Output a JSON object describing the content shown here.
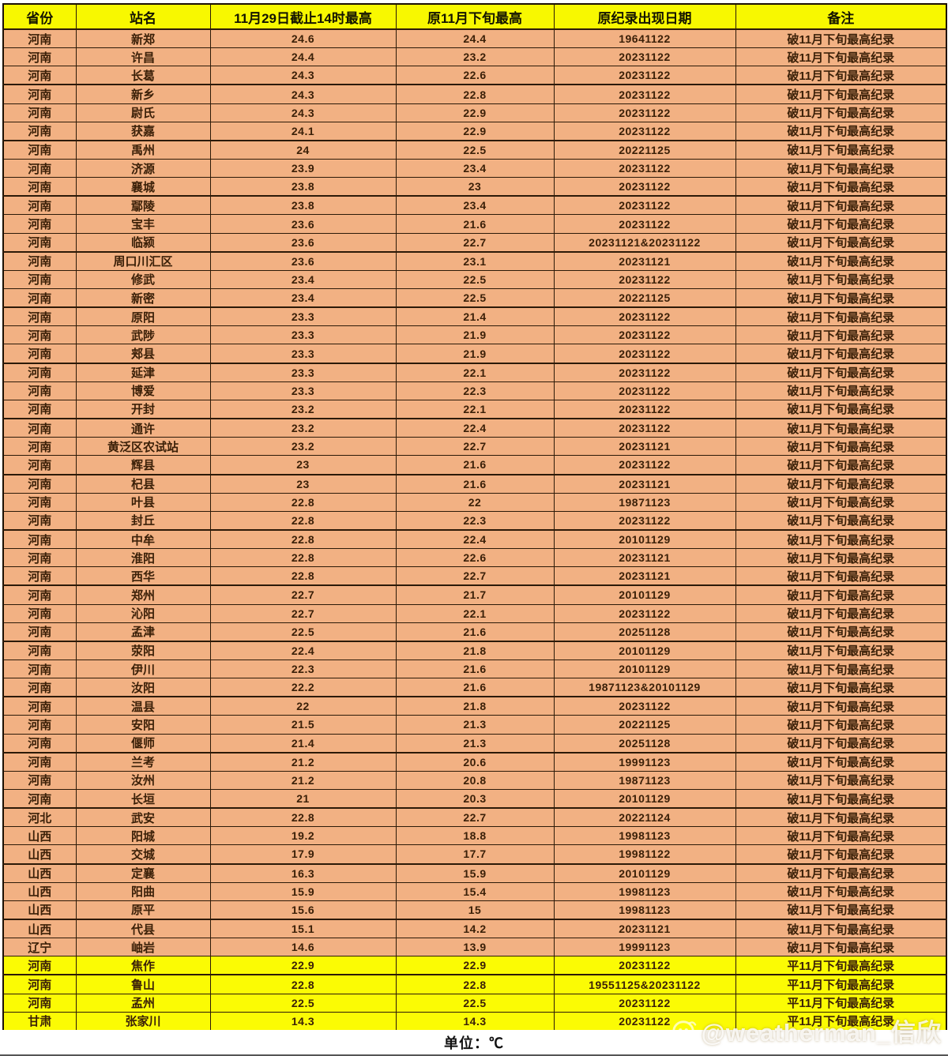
{
  "table": {
    "columns": [
      "省份",
      "站名",
      "11月29日截止14时最高",
      "原11月下旬最高",
      "原纪录出现日期",
      "备注"
    ],
    "rows": [
      {
        "province": "河南",
        "station": "新郑",
        "temp_today": "24.6",
        "temp_prev": "24.4",
        "record_date": "19641122",
        "remark": "破11月下旬最高纪录",
        "highlight": false
      },
      {
        "province": "河南",
        "station": "许昌",
        "temp_today": "24.4",
        "temp_prev": "23.2",
        "record_date": "20231122",
        "remark": "破11月下旬最高纪录",
        "highlight": false
      },
      {
        "province": "河南",
        "station": "长葛",
        "temp_today": "24.3",
        "temp_prev": "22.6",
        "record_date": "20231122",
        "remark": "破11月下旬最高纪录",
        "highlight": false
      },
      {
        "province": "河南",
        "station": "新乡",
        "temp_today": "24.3",
        "temp_prev": "22.8",
        "record_date": "20231122",
        "remark": "破11月下旬最高纪录",
        "highlight": false
      },
      {
        "province": "河南",
        "station": "尉氏",
        "temp_today": "24.3",
        "temp_prev": "22.9",
        "record_date": "20231122",
        "remark": "破11月下旬最高纪录",
        "highlight": false
      },
      {
        "province": "河南",
        "station": "获嘉",
        "temp_today": "24.1",
        "temp_prev": "22.9",
        "record_date": "20231122",
        "remark": "破11月下旬最高纪录",
        "highlight": false
      },
      {
        "province": "河南",
        "station": "禹州",
        "temp_today": "24",
        "temp_prev": "22.5",
        "record_date": "20221125",
        "remark": "破11月下旬最高纪录",
        "highlight": false
      },
      {
        "province": "河南",
        "station": "济源",
        "temp_today": "23.9",
        "temp_prev": "23.4",
        "record_date": "20231122",
        "remark": "破11月下旬最高纪录",
        "highlight": false
      },
      {
        "province": "河南",
        "station": "襄城",
        "temp_today": "23.8",
        "temp_prev": "23",
        "record_date": "20231122",
        "remark": "破11月下旬最高纪录",
        "highlight": false
      },
      {
        "province": "河南",
        "station": "鄢陵",
        "temp_today": "23.8",
        "temp_prev": "23.4",
        "record_date": "20231122",
        "remark": "破11月下旬最高纪录",
        "highlight": false
      },
      {
        "province": "河南",
        "station": "宝丰",
        "temp_today": "23.6",
        "temp_prev": "21.6",
        "record_date": "20231122",
        "remark": "破11月下旬最高纪录",
        "highlight": false
      },
      {
        "province": "河南",
        "station": "临颍",
        "temp_today": "23.6",
        "temp_prev": "22.7",
        "record_date": "20231121&20231122",
        "remark": "破11月下旬最高纪录",
        "highlight": false
      },
      {
        "province": "河南",
        "station": "周口川汇区",
        "temp_today": "23.6",
        "temp_prev": "23.1",
        "record_date": "20231121",
        "remark": "破11月下旬最高纪录",
        "highlight": false
      },
      {
        "province": "河南",
        "station": "修武",
        "temp_today": "23.4",
        "temp_prev": "22.5",
        "record_date": "20231122",
        "remark": "破11月下旬最高纪录",
        "highlight": false
      },
      {
        "province": "河南",
        "station": "新密",
        "temp_today": "23.4",
        "temp_prev": "22.5",
        "record_date": "20221125",
        "remark": "破11月下旬最高纪录",
        "highlight": false
      },
      {
        "province": "河南",
        "station": "原阳",
        "temp_today": "23.3",
        "temp_prev": "21.4",
        "record_date": "20231122",
        "remark": "破11月下旬最高纪录",
        "highlight": false
      },
      {
        "province": "河南",
        "station": "武陟",
        "temp_today": "23.3",
        "temp_prev": "21.9",
        "record_date": "20231122",
        "remark": "破11月下旬最高纪录",
        "highlight": false
      },
      {
        "province": "河南",
        "station": "郏县",
        "temp_today": "23.3",
        "temp_prev": "21.9",
        "record_date": "20231122",
        "remark": "破11月下旬最高纪录",
        "highlight": false
      },
      {
        "province": "河南",
        "station": "延津",
        "temp_today": "23.3",
        "temp_prev": "22.1",
        "record_date": "20231122",
        "remark": "破11月下旬最高纪录",
        "highlight": false
      },
      {
        "province": "河南",
        "station": "博爱",
        "temp_today": "23.3",
        "temp_prev": "22.3",
        "record_date": "20231122",
        "remark": "破11月下旬最高纪录",
        "highlight": false
      },
      {
        "province": "河南",
        "station": "开封",
        "temp_today": "23.2",
        "temp_prev": "22.1",
        "record_date": "20231122",
        "remark": "破11月下旬最高纪录",
        "highlight": false
      },
      {
        "province": "河南",
        "station": "通许",
        "temp_today": "23.2",
        "temp_prev": "22.4",
        "record_date": "20231122",
        "remark": "破11月下旬最高纪录",
        "highlight": false
      },
      {
        "province": "河南",
        "station": "黄泛区农试站",
        "temp_today": "23.2",
        "temp_prev": "22.7",
        "record_date": "20231121",
        "remark": "破11月下旬最高纪录",
        "highlight": false
      },
      {
        "province": "河南",
        "station": "辉县",
        "temp_today": "23",
        "temp_prev": "21.6",
        "record_date": "20231122",
        "remark": "破11月下旬最高纪录",
        "highlight": false
      },
      {
        "province": "河南",
        "station": "杞县",
        "temp_today": "23",
        "temp_prev": "21.6",
        "record_date": "20231121",
        "remark": "破11月下旬最高纪录",
        "highlight": false
      },
      {
        "province": "河南",
        "station": "叶县",
        "temp_today": "22.8",
        "temp_prev": "22",
        "record_date": "19871123",
        "remark": "破11月下旬最高纪录",
        "highlight": false
      },
      {
        "province": "河南",
        "station": "封丘",
        "temp_today": "22.8",
        "temp_prev": "22.3",
        "record_date": "20231122",
        "remark": "破11月下旬最高纪录",
        "highlight": false
      },
      {
        "province": "河南",
        "station": "中牟",
        "temp_today": "22.8",
        "temp_prev": "22.4",
        "record_date": "20101129",
        "remark": "破11月下旬最高纪录",
        "highlight": false
      },
      {
        "province": "河南",
        "station": "淮阳",
        "temp_today": "22.8",
        "temp_prev": "22.6",
        "record_date": "20231121",
        "remark": "破11月下旬最高纪录",
        "highlight": false
      },
      {
        "province": "河南",
        "station": "西华",
        "temp_today": "22.8",
        "temp_prev": "22.7",
        "record_date": "20231121",
        "remark": "破11月下旬最高纪录",
        "highlight": false
      },
      {
        "province": "河南",
        "station": "郑州",
        "temp_today": "22.7",
        "temp_prev": "21.7",
        "record_date": "20101129",
        "remark": "破11月下旬最高纪录",
        "highlight": false
      },
      {
        "province": "河南",
        "station": "沁阳",
        "temp_today": "22.7",
        "temp_prev": "22.1",
        "record_date": "20231122",
        "remark": "破11月下旬最高纪录",
        "highlight": false
      },
      {
        "province": "河南",
        "station": "孟津",
        "temp_today": "22.5",
        "temp_prev": "21.6",
        "record_date": "20251128",
        "remark": "破11月下旬最高纪录",
        "highlight": false
      },
      {
        "province": "河南",
        "station": "荥阳",
        "temp_today": "22.4",
        "temp_prev": "21.8",
        "record_date": "20101129",
        "remark": "破11月下旬最高纪录",
        "highlight": false
      },
      {
        "province": "河南",
        "station": "伊川",
        "temp_today": "22.3",
        "temp_prev": "21.6",
        "record_date": "20101129",
        "remark": "破11月下旬最高纪录",
        "highlight": false
      },
      {
        "province": "河南",
        "station": "汝阳",
        "temp_today": "22.2",
        "temp_prev": "21.6",
        "record_date": "19871123&20101129",
        "remark": "破11月下旬最高纪录",
        "highlight": false
      },
      {
        "province": "河南",
        "station": "温县",
        "temp_today": "22",
        "temp_prev": "21.8",
        "record_date": "20231122",
        "remark": "破11月下旬最高纪录",
        "highlight": false
      },
      {
        "province": "河南",
        "station": "安阳",
        "temp_today": "21.5",
        "temp_prev": "21.3",
        "record_date": "20221125",
        "remark": "破11月下旬最高纪录",
        "highlight": false
      },
      {
        "province": "河南",
        "station": "偃师",
        "temp_today": "21.4",
        "temp_prev": "21.3",
        "record_date": "20251128",
        "remark": "破11月下旬最高纪录",
        "highlight": false
      },
      {
        "province": "河南",
        "station": "兰考",
        "temp_today": "21.2",
        "temp_prev": "20.6",
        "record_date": "19991123",
        "remark": "破11月下旬最高纪录",
        "highlight": false
      },
      {
        "province": "河南",
        "station": "汝州",
        "temp_today": "21.2",
        "temp_prev": "20.8",
        "record_date": "19871123",
        "remark": "破11月下旬最高纪录",
        "highlight": false
      },
      {
        "province": "河南",
        "station": "长垣",
        "temp_today": "21",
        "temp_prev": "20.3",
        "record_date": "20101129",
        "remark": "破11月下旬最高纪录",
        "highlight": false
      },
      {
        "province": "河北",
        "station": "武安",
        "temp_today": "22.8",
        "temp_prev": "22.7",
        "record_date": "20221124",
        "remark": "破11月下旬最高纪录",
        "highlight": false
      },
      {
        "province": "山西",
        "station": "阳城",
        "temp_today": "19.2",
        "temp_prev": "18.8",
        "record_date": "19981123",
        "remark": "破11月下旬最高纪录",
        "highlight": false
      },
      {
        "province": "山西",
        "station": "交城",
        "temp_today": "17.9",
        "temp_prev": "17.7",
        "record_date": "19981122",
        "remark": "破11月下旬最高纪录",
        "highlight": false
      },
      {
        "province": "山西",
        "station": "定襄",
        "temp_today": "16.3",
        "temp_prev": "15.9",
        "record_date": "20101129",
        "remark": "破11月下旬最高纪录",
        "highlight": false
      },
      {
        "province": "山西",
        "station": "阳曲",
        "temp_today": "15.9",
        "temp_prev": "15.4",
        "record_date": "19981123",
        "remark": "破11月下旬最高纪录",
        "highlight": false
      },
      {
        "province": "山西",
        "station": "原平",
        "temp_today": "15.6",
        "temp_prev": "15",
        "record_date": "19981123",
        "remark": "破11月下旬最高纪录",
        "highlight": false
      },
      {
        "province": "山西",
        "station": "代县",
        "temp_today": "15.1",
        "temp_prev": "14.2",
        "record_date": "20231121",
        "remark": "破11月下旬最高纪录",
        "highlight": false
      },
      {
        "province": "辽宁",
        "station": "岫岩",
        "temp_today": "14.6",
        "temp_prev": "13.9",
        "record_date": "19991123",
        "remark": "破11月下旬最高纪录",
        "highlight": false
      },
      {
        "province": "河南",
        "station": "焦作",
        "temp_today": "22.9",
        "temp_prev": "22.9",
        "record_date": "20231122",
        "remark": "平11月下旬最高纪录",
        "highlight": true
      },
      {
        "province": "河南",
        "station": "鲁山",
        "temp_today": "22.8",
        "temp_prev": "22.8",
        "record_date": "19551125&20231122",
        "remark": "平11月下旬最高纪录",
        "highlight": true
      },
      {
        "province": "河南",
        "station": "孟州",
        "temp_today": "22.5",
        "temp_prev": "22.5",
        "record_date": "20231122",
        "remark": "平11月下旬最高纪录",
        "highlight": true
      },
      {
        "province": "甘肃",
        "station": "张家川",
        "temp_today": "14.3",
        "temp_prev": "14.3",
        "record_date": "20231122",
        "remark": "平11月下旬最高纪录",
        "highlight": true
      }
    ]
  },
  "footer": {
    "unit_label": "单位：℃"
  },
  "watermark": {
    "handle": "@weatherman_信欣"
  },
  "colors": {
    "header_bg": "#f8f800",
    "row_bg": "#f2b183",
    "highlight_bg": "#fbfb04",
    "border": "#2c1a08",
    "body_text": "#3b2008"
  }
}
